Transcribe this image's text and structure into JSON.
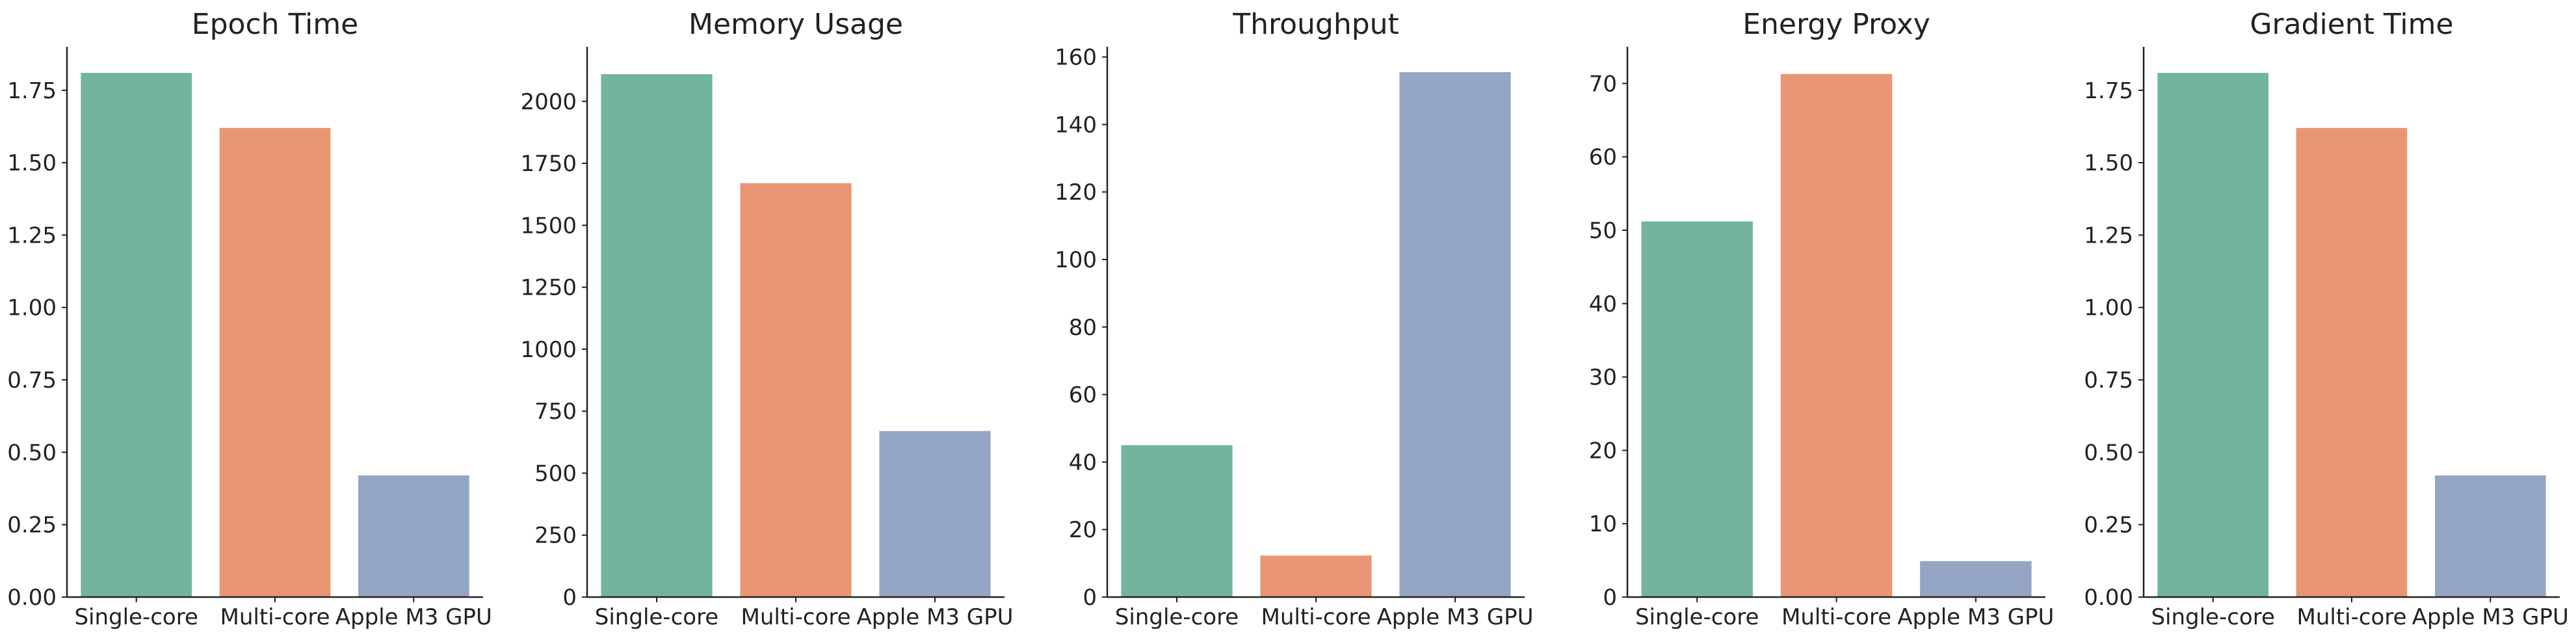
{
  "colors": {
    "palette": [
      "#73b49f",
      "#e89674",
      "#95a5c4"
    ],
    "axis": "#222222",
    "text": "#222222",
    "background": "#ffffff"
  },
  "chart_data": [
    {
      "type": "bar",
      "title": "Epoch Time",
      "xlabel": "",
      "ylabel": "",
      "categories": [
        "Single-core",
        "Multi-core",
        "Apple M3 GPU"
      ],
      "values": [
        1.81,
        1.62,
        0.42
      ],
      "ylim": [
        0,
        1.9
      ],
      "yticks": [
        "0.00",
        "0.25",
        "0.50",
        "0.75",
        "1.00",
        "1.25",
        "1.50",
        "1.75"
      ],
      "grid": false,
      "legend": "none"
    },
    {
      "type": "bar",
      "title": "Memory Usage",
      "xlabel": "",
      "ylabel": "",
      "categories": [
        "Single-core",
        "Multi-core",
        "Apple M3 GPU"
      ],
      "values": [
        2110,
        1670,
        670
      ],
      "ylim": [
        0,
        2220
      ],
      "yticks": [
        "0",
        "250",
        "500",
        "750",
        "1000",
        "1250",
        "1500",
        "1750",
        "2000"
      ],
      "grid": false,
      "legend": "none"
    },
    {
      "type": "bar",
      "title": "Throughput",
      "xlabel": "",
      "ylabel": "",
      "categories": [
        "Single-core",
        "Multi-core",
        "Apple M3 GPU"
      ],
      "values": [
        45,
        12.3,
        155.5
      ],
      "ylim": [
        0,
        163
      ],
      "yticks": [
        "0",
        "20",
        "40",
        "60",
        "80",
        "100",
        "120",
        "140",
        "160"
      ],
      "grid": false,
      "legend": "none"
    },
    {
      "type": "bar",
      "title": "Energy Proxy",
      "xlabel": "",
      "ylabel": "",
      "categories": [
        "Single-core",
        "Multi-core",
        "Apple M3 GPU"
      ],
      "values": [
        51.2,
        71.3,
        4.9
      ],
      "ylim": [
        0,
        75
      ],
      "yticks": [
        "0",
        "10",
        "20",
        "30",
        "40",
        "50",
        "60",
        "70"
      ],
      "grid": false,
      "legend": "none"
    },
    {
      "type": "bar",
      "title": "Gradient Time",
      "xlabel": "",
      "ylabel": "",
      "categories": [
        "Single-core",
        "Multi-core",
        "Apple M3 GPU"
      ],
      "values": [
        1.81,
        1.62,
        0.42
      ],
      "ylim": [
        0,
        1.9
      ],
      "yticks": [
        "0.00",
        "0.25",
        "0.50",
        "0.75",
        "1.00",
        "1.25",
        "1.50",
        "1.75"
      ],
      "grid": false,
      "legend": "none"
    }
  ]
}
